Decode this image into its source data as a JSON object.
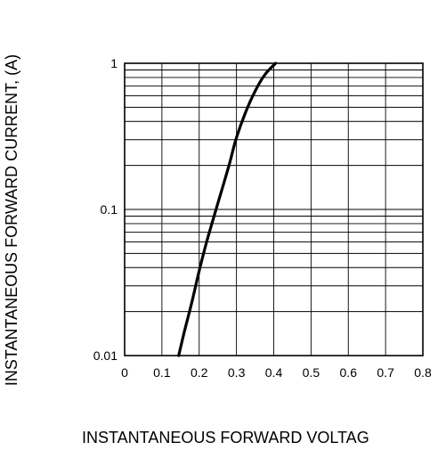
{
  "chart_data": {
    "type": "line",
    "title": "",
    "xlabel": "INSTANTANEOUS FORWARD VOLTAG",
    "ylabel": "INSTANTANEOUS FORWARD CURRENT, (A)",
    "x_scale": "linear",
    "y_scale": "log",
    "xlim": [
      0,
      0.8
    ],
    "ylim": [
      0.01,
      1
    ],
    "x_ticks": [
      0,
      0.1,
      0.2,
      0.3,
      0.4,
      0.5,
      0.6,
      0.7,
      0.8
    ],
    "x_tick_labels": [
      "0",
      "0.1",
      "0.2",
      "0.3",
      "0.4",
      "0.5",
      "0.6",
      "0.7",
      "0.8"
    ],
    "y_ticks": [
      0.01,
      0.1,
      1
    ],
    "y_tick_labels": [
      "0.01",
      "0.1",
      "1"
    ],
    "grid": true,
    "series": [
      {
        "color": "#000000",
        "x": [
          0.145,
          0.16,
          0.18,
          0.2,
          0.22,
          0.25,
          0.28,
          0.3,
          0.33,
          0.36,
          0.38,
          0.405
        ],
        "y": [
          0.01,
          0.0145,
          0.023,
          0.038,
          0.06,
          0.11,
          0.2,
          0.31,
          0.5,
          0.72,
          0.86,
          1.0
        ]
      }
    ]
  }
}
